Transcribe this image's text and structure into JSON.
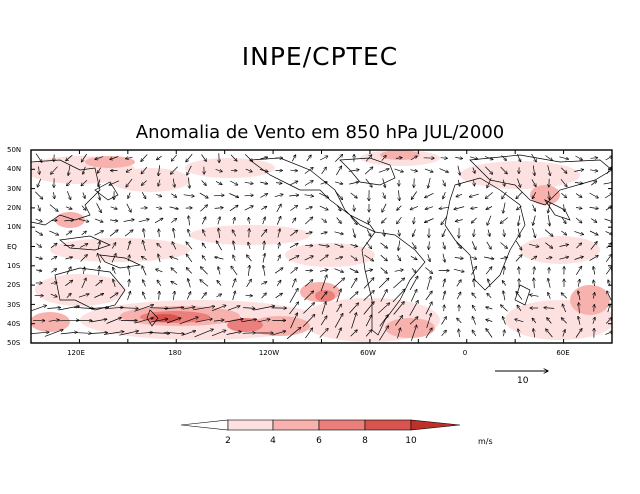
{
  "header": {
    "title": "INPE/CPTEC",
    "subtitle": "Anomalia de Vento em 850 hPa JUL/2000"
  },
  "axes": {
    "lat_labels": [
      "50N",
      "40N",
      "30N",
      "20N",
      "10N",
      "EQ",
      "10S",
      "20S",
      "30S",
      "40S",
      "50S"
    ],
    "lon_labels": [
      {
        "text": "120E",
        "lon": 120
      },
      {
        "text": "180",
        "lon": 180
      },
      {
        "text": "120W",
        "lon": 240
      },
      {
        "text": "60W",
        "lon": 300
      },
      {
        "text": "0",
        "lon": 360
      },
      {
        "text": "60E",
        "lon": 420
      }
    ],
    "lon_range": [
      90,
      450
    ],
    "lat_range": [
      -50,
      50
    ]
  },
  "reference_vector": {
    "label": "10"
  },
  "colorbar": {
    "ticks": [
      "2",
      "4",
      "6",
      "8",
      "10"
    ],
    "unit": "m/s",
    "colors": [
      "#ffffff",
      "#fde1e0",
      "#f7b2ae",
      "#ea7f7b",
      "#d9534f",
      "#c0302b"
    ]
  }
}
